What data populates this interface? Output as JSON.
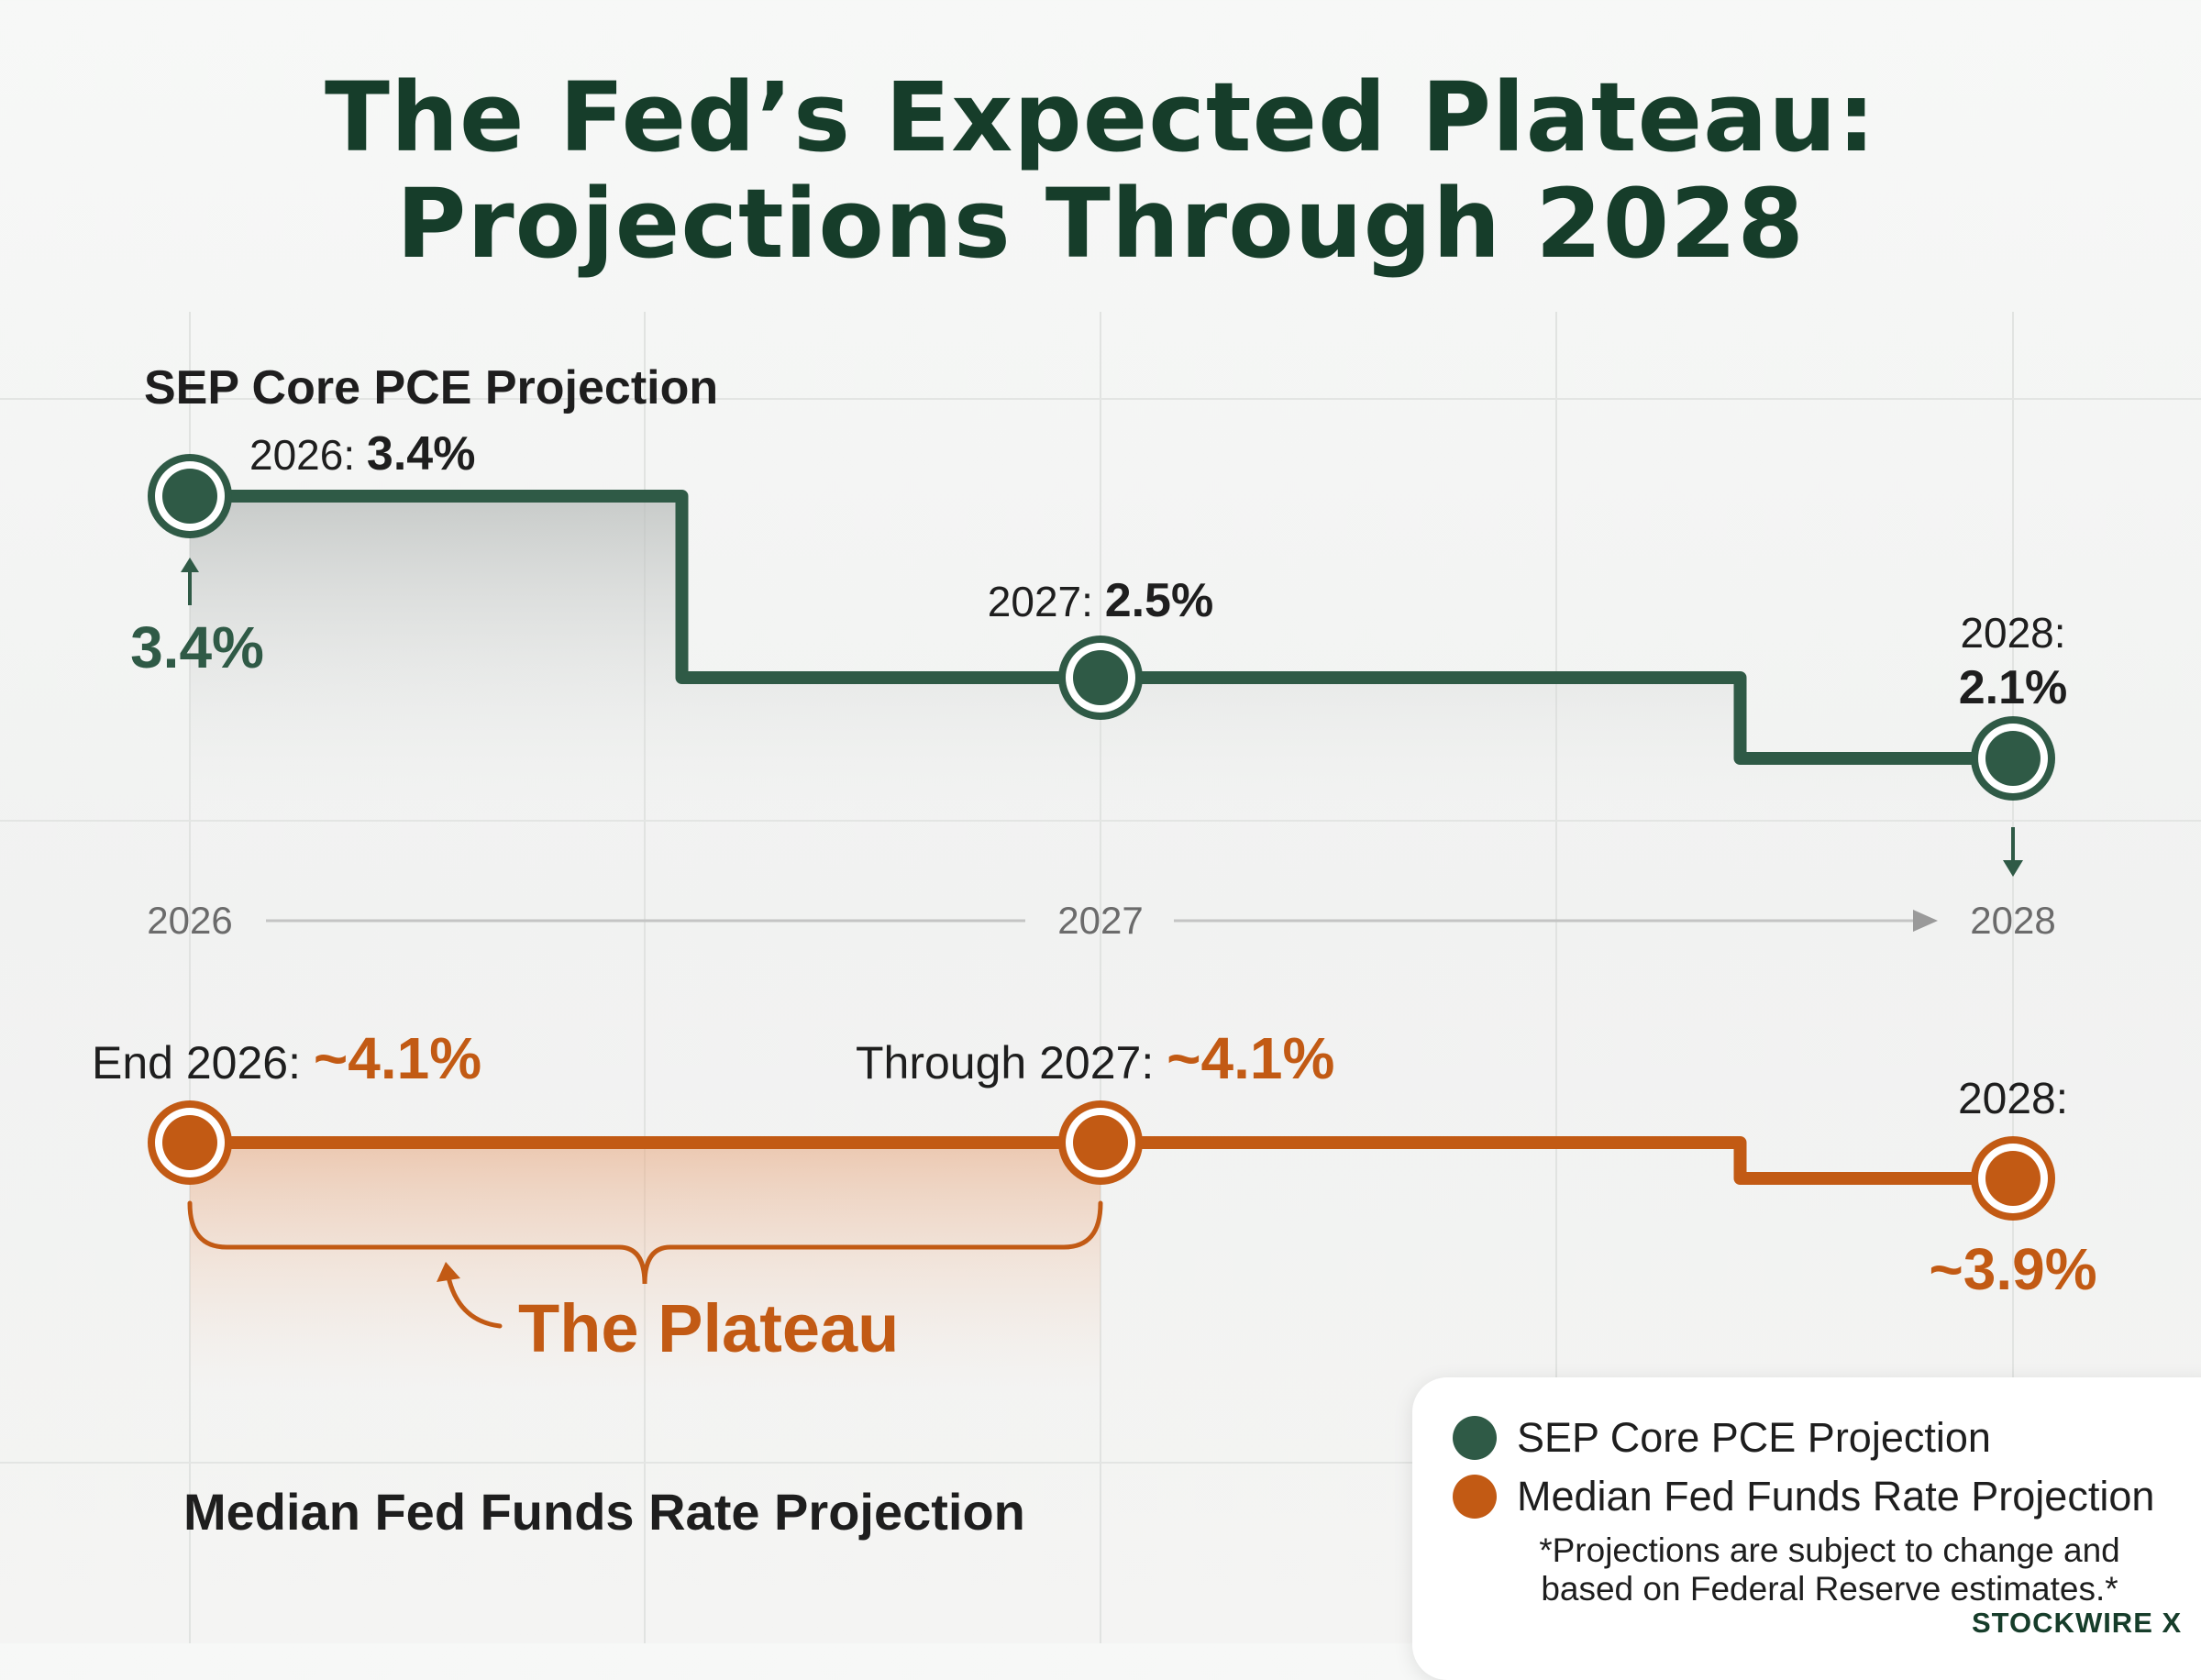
{
  "title": {
    "line1": "The Fed’s Expected Plateau:",
    "line2": "Projections Through 2028"
  },
  "colors": {
    "pce": "#2f5a46",
    "funds": "#c25a14",
    "text": "#1e1e1e",
    "axis_text": "#6b6b6b"
  },
  "chart_data": {
    "type": "line",
    "step": true,
    "title": "The Fed’s Expected Plateau: Projections Through 2028",
    "x": [
      "2026",
      "2027",
      "2028"
    ],
    "series": [
      {
        "name": "SEP Core PCE Projection",
        "values": [
          3.4,
          2.5,
          2.1
        ],
        "unit": "%",
        "point_labels": [
          {
            "prefix": "2026:",
            "value": "3.4%"
          },
          {
            "prefix": "2027:",
            "value": "2.5%"
          },
          {
            "prefix": "2028:",
            "value": "2.1%"
          }
        ],
        "start_callout": "3.4%"
      },
      {
        "name": "Median Fed Funds Rate Projection",
        "values": [
          4.1,
          4.1,
          3.9
        ],
        "unit": "%",
        "point_labels": [
          {
            "prefix": "End 2026:",
            "value": "~4.1%"
          },
          {
            "prefix": "Through 2027:",
            "value": "~4.1%"
          },
          {
            "prefix": "2028:",
            "value": "~3.9%"
          }
        ]
      }
    ],
    "annotations": {
      "plateau_label": "The Plateau",
      "plateau_range": [
        "2026",
        "2027"
      ]
    },
    "grid": true,
    "legend": "bottom-right"
  },
  "legend": {
    "items": [
      {
        "label": "SEP Core PCE Projection",
        "color": "#2f5a46"
      },
      {
        "label": "Median Fed Funds Rate Projection",
        "color": "#c25a14"
      }
    ],
    "note": "*Projections are subject to change and based on Federal Reserve estimates.*"
  },
  "brand": "STOCKWIRE X"
}
